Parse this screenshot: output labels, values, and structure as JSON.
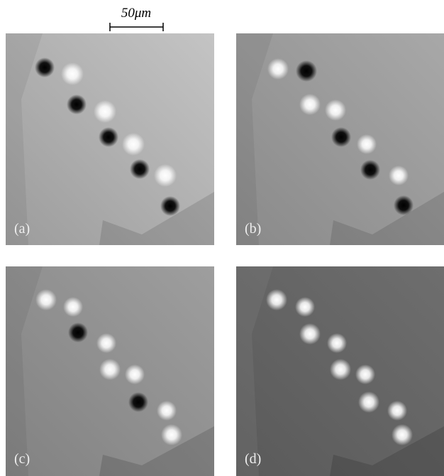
{
  "scale_bar": {
    "label": "50μm"
  },
  "panels": [
    {
      "label": "(a)"
    },
    {
      "label": "(b)"
    },
    {
      "label": "(c)"
    },
    {
      "label": "(d)"
    }
  ]
}
